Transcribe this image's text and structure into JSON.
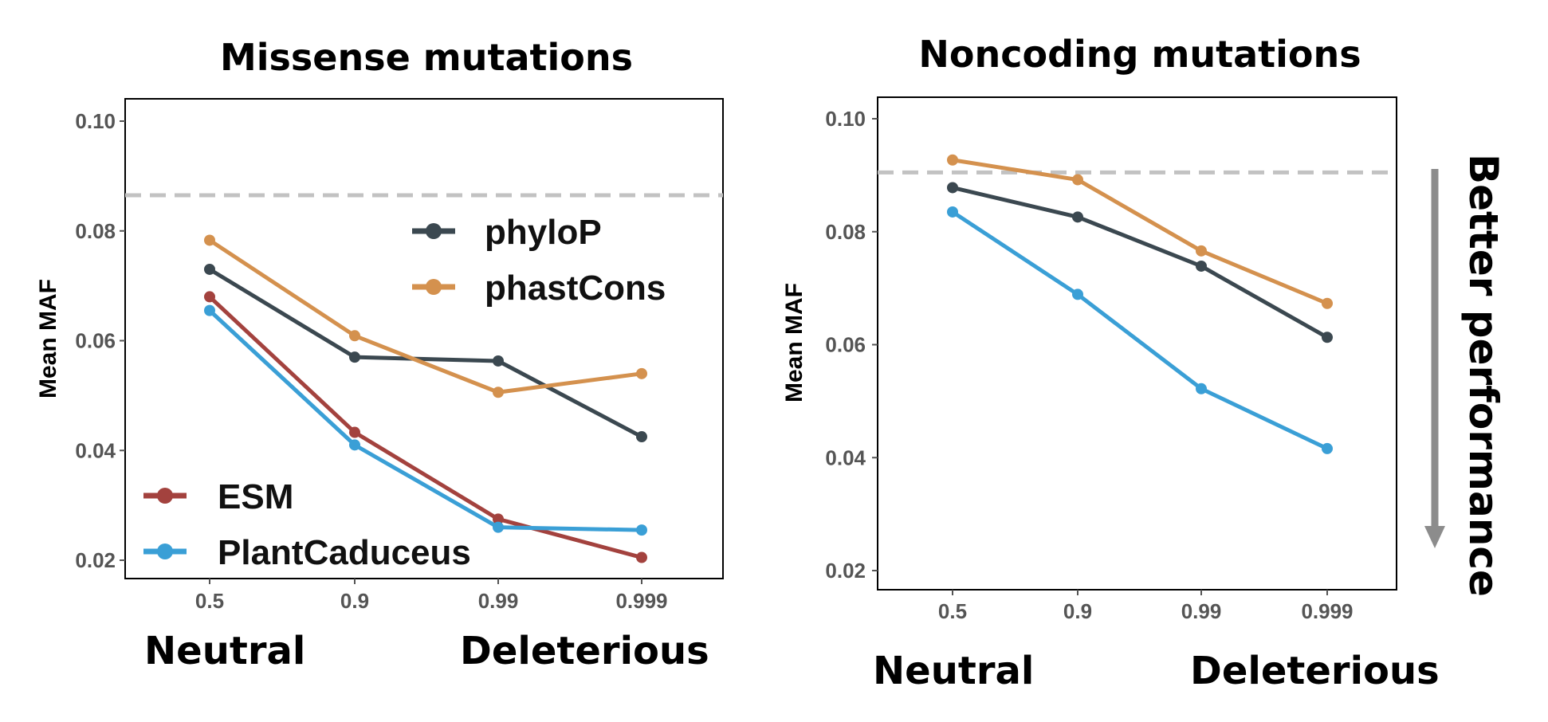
{
  "colors": {
    "phyloP": "#3b4850",
    "phastCons": "#d4914e",
    "ESM": "#a3423e",
    "PlantCaduceus": "#3a9fd6",
    "baseline": "#c2c2c2",
    "arrow": "#8c8c8c"
  },
  "annotations": {
    "neutral": "Neutral",
    "deleterious": "Deleterious",
    "better_performance": "Better performance"
  },
  "chart_data": [
    {
      "type": "line",
      "title": "Missense mutations",
      "xlabel": "",
      "ylabel": "Mean MAF",
      "categories": [
        "0.5",
        "0.9",
        "0.99",
        "0.999"
      ],
      "ylim": [
        0.017,
        0.104
      ],
      "yticks": [
        "0.02",
        "0.04",
        "0.06",
        "0.08",
        "0.10"
      ],
      "baseline": 0.0865,
      "grid": false,
      "legend_position": "inside, top-right and bottom-left",
      "series": [
        {
          "name": "phyloP",
          "values": [
            0.073,
            0.057,
            0.0563,
            0.0425
          ]
        },
        {
          "name": "phastCons",
          "values": [
            0.0783,
            0.0609,
            0.0506,
            0.054
          ]
        },
        {
          "name": "ESM",
          "values": [
            0.068,
            0.0433,
            0.0275,
            0.0205
          ]
        },
        {
          "name": "PlantCaduceus",
          "values": [
            0.0655,
            0.041,
            0.026,
            0.0255
          ]
        }
      ]
    },
    {
      "type": "line",
      "title": "Noncoding mutations",
      "xlabel": "",
      "ylabel": "Mean MAF",
      "categories": [
        "0.5",
        "0.9",
        "0.99",
        "0.999"
      ],
      "ylim": [
        0.016,
        0.104
      ],
      "yticks": [
        "0.02",
        "0.04",
        "0.06",
        "0.08",
        "0.10"
      ],
      "baseline": 0.0905,
      "grid": false,
      "series": [
        {
          "name": "phyloP",
          "values": [
            0.0878,
            0.0826,
            0.0739,
            0.0613
          ]
        },
        {
          "name": "phastCons",
          "values": [
            0.0927,
            0.0892,
            0.0766,
            0.0673
          ]
        },
        {
          "name": "PlantCaduceus",
          "values": [
            0.0835,
            0.0689,
            0.0522,
            0.0416
          ]
        }
      ]
    }
  ]
}
